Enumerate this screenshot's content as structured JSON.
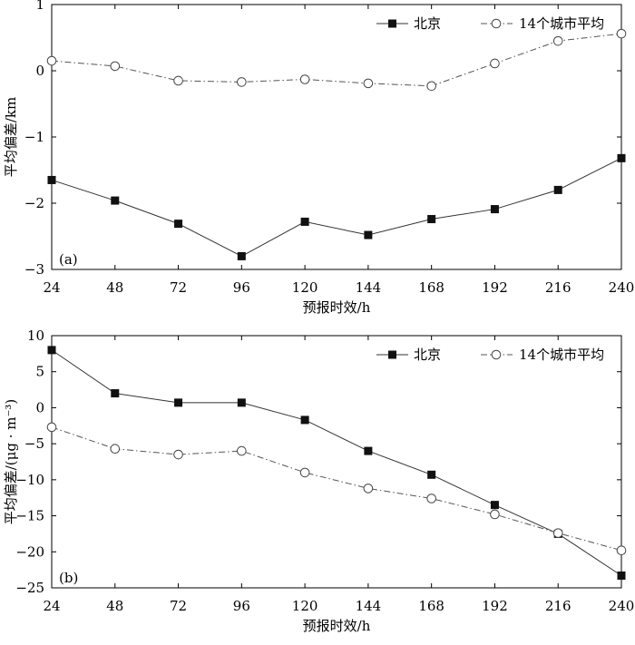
{
  "chart_data": [
    {
      "type": "line",
      "panel_label": "(a)",
      "xlabel": "预报时效/h",
      "ylabel": "平均偏差/km",
      "x": [
        24,
        48,
        72,
        96,
        120,
        144,
        168,
        192,
        216,
        240
      ],
      "xticks": [
        "24",
        "48",
        "72",
        "96",
        "120",
        "144",
        "168",
        "192",
        "216",
        "240"
      ],
      "xlim": [
        24,
        240
      ],
      "ylim": [
        -3,
        1
      ],
      "yticks": [
        -3,
        -2,
        -1,
        0,
        1
      ],
      "ytick_labels": [
        "−3",
        "−2",
        "−1",
        "0",
        "1"
      ],
      "legend_position": "top-right",
      "grid": false,
      "series": [
        {
          "name": "北京",
          "marker": "filled-square",
          "line": "solid",
          "values": [
            -1.65,
            -1.96,
            -2.31,
            -2.8,
            -2.28,
            -2.48,
            -2.24,
            -2.09,
            -1.8,
            -1.32
          ]
        },
        {
          "name": "14个城市平均",
          "marker": "open-circle",
          "line": "dash-dot",
          "values": [
            0.15,
            0.07,
            -0.15,
            -0.17,
            -0.13,
            -0.19,
            -0.23,
            0.11,
            0.45,
            0.56
          ]
        }
      ]
    },
    {
      "type": "line",
      "panel_label": "(b)",
      "xlabel": "预报时效/h",
      "ylabel": "平均偏差/(μg · m⁻³)",
      "x": [
        24,
        48,
        72,
        96,
        120,
        144,
        168,
        192,
        216,
        240
      ],
      "xticks": [
        "24",
        "48",
        "72",
        "96",
        "120",
        "144",
        "168",
        "192",
        "216",
        "240"
      ],
      "xlim": [
        24,
        240
      ],
      "ylim": [
        -25,
        10
      ],
      "yticks": [
        -25,
        -20,
        -15,
        -10,
        -5,
        0,
        5,
        10
      ],
      "ytick_labels": [
        "−25",
        "−20",
        "−15",
        "−10",
        "−5",
        "0",
        "5",
        "10"
      ],
      "legend_position": "top-right",
      "grid": false,
      "series": [
        {
          "name": "北京",
          "marker": "filled-square",
          "line": "solid",
          "values": [
            8.0,
            2.0,
            0.7,
            0.7,
            -1.7,
            -6.0,
            -9.3,
            -13.5,
            -17.5,
            -23.3
          ]
        },
        {
          "name": "14个城市平均",
          "marker": "open-circle",
          "line": "dash-dot",
          "values": [
            -2.7,
            -5.7,
            -6.5,
            -6.0,
            -9.0,
            -11.2,
            -12.6,
            -14.8,
            -17.4,
            -19.8
          ]
        }
      ]
    }
  ]
}
